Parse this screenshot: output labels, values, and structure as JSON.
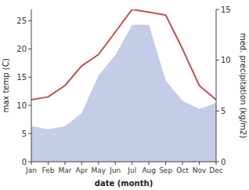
{
  "chart_data": {
    "type": "line",
    "xlabel": "date (month)",
    "ylabel": "max temp (C)",
    "y2label": "med. precipitation (kg/m2)",
    "categories": [
      "Jan",
      "Feb",
      "Mar",
      "Apr",
      "May",
      "Jun",
      "Jul",
      "Aug",
      "Sep",
      "Oct",
      "Nov",
      "Dec"
    ],
    "series": [
      {
        "type": "area",
        "axis": "y2",
        "color": "#c5cce8",
        "values": [
          3.5,
          3.2,
          3.5,
          4.8,
          8.5,
          10.5,
          13.5,
          13.5,
          8.0,
          6.0,
          5.2,
          5.8
        ]
      },
      {
        "type": "line",
        "color": "#c0504d",
        "values": [
          11,
          11.5,
          13.5,
          17,
          19,
          23,
          27,
          26.5,
          26,
          20,
          13.5,
          11
        ]
      }
    ],
    "ylim": [
      0,
      27
    ],
    "yticks": [
      0,
      5,
      10,
      15,
      20,
      25
    ],
    "y2lim": [
      0,
      15
    ],
    "y2ticks": [
      0,
      5,
      10,
      15
    ],
    "grid": false
  }
}
